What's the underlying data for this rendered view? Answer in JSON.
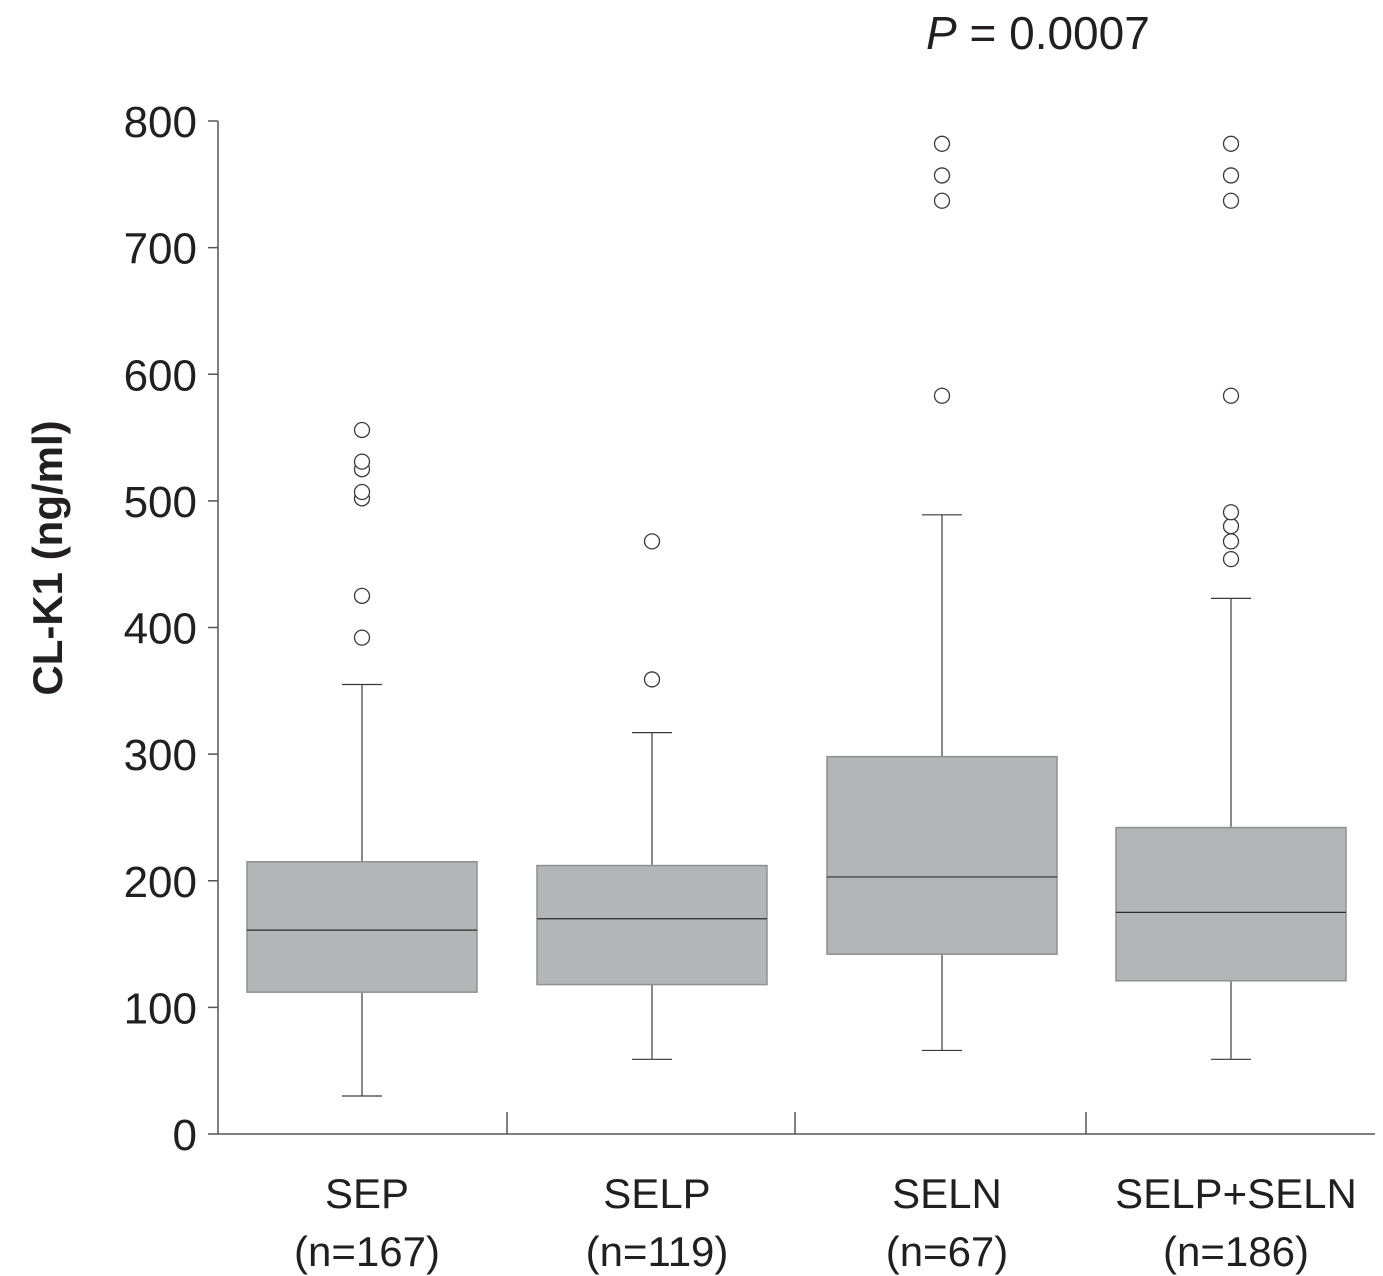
{
  "chart_data": {
    "type": "box",
    "annotation": {
      "prefix": "P",
      "text": " = 0.0007"
    },
    "ylabel": "CL-K1 (ng/ml)",
    "xlabel": "",
    "ylim": [
      0,
      800
    ],
    "yticks": [
      "0",
      "100",
      "200",
      "300",
      "400",
      "500",
      "600",
      "700",
      "800"
    ],
    "grid": false,
    "categories": [
      {
        "name": "SEP",
        "n_label": "(n=167)"
      },
      {
        "name": "SELP",
        "n_label": "(n=119)"
      },
      {
        "name": "SELN",
        "n_label": "(n=67)"
      },
      {
        "name": "SELP+SELN",
        "n_label": "(n=186)"
      }
    ],
    "boxes": [
      {
        "whisker_low": 30,
        "q1": 112,
        "median": 161,
        "q3": 215,
        "whisker_high": 355,
        "outliers": [
          392,
          425,
          502,
          507,
          525,
          531,
          556
        ]
      },
      {
        "whisker_low": 59,
        "q1": 118,
        "median": 170,
        "q3": 212,
        "whisker_high": 317,
        "outliers": [
          359,
          468
        ]
      },
      {
        "whisker_low": 66,
        "q1": 142,
        "median": 203,
        "q3": 298,
        "whisker_high": 489,
        "outliers": [
          583,
          737,
          757,
          782
        ]
      },
      {
        "whisker_low": 59,
        "q1": 121,
        "median": 175,
        "q3": 242,
        "whisker_high": 423,
        "outliers": [
          454,
          468,
          480,
          491,
          583,
          737,
          757,
          782
        ]
      }
    ],
    "colors": {
      "box_fill": "#b4b5b7",
      "line": "#3a3a3a",
      "axis": "#555555"
    }
  }
}
